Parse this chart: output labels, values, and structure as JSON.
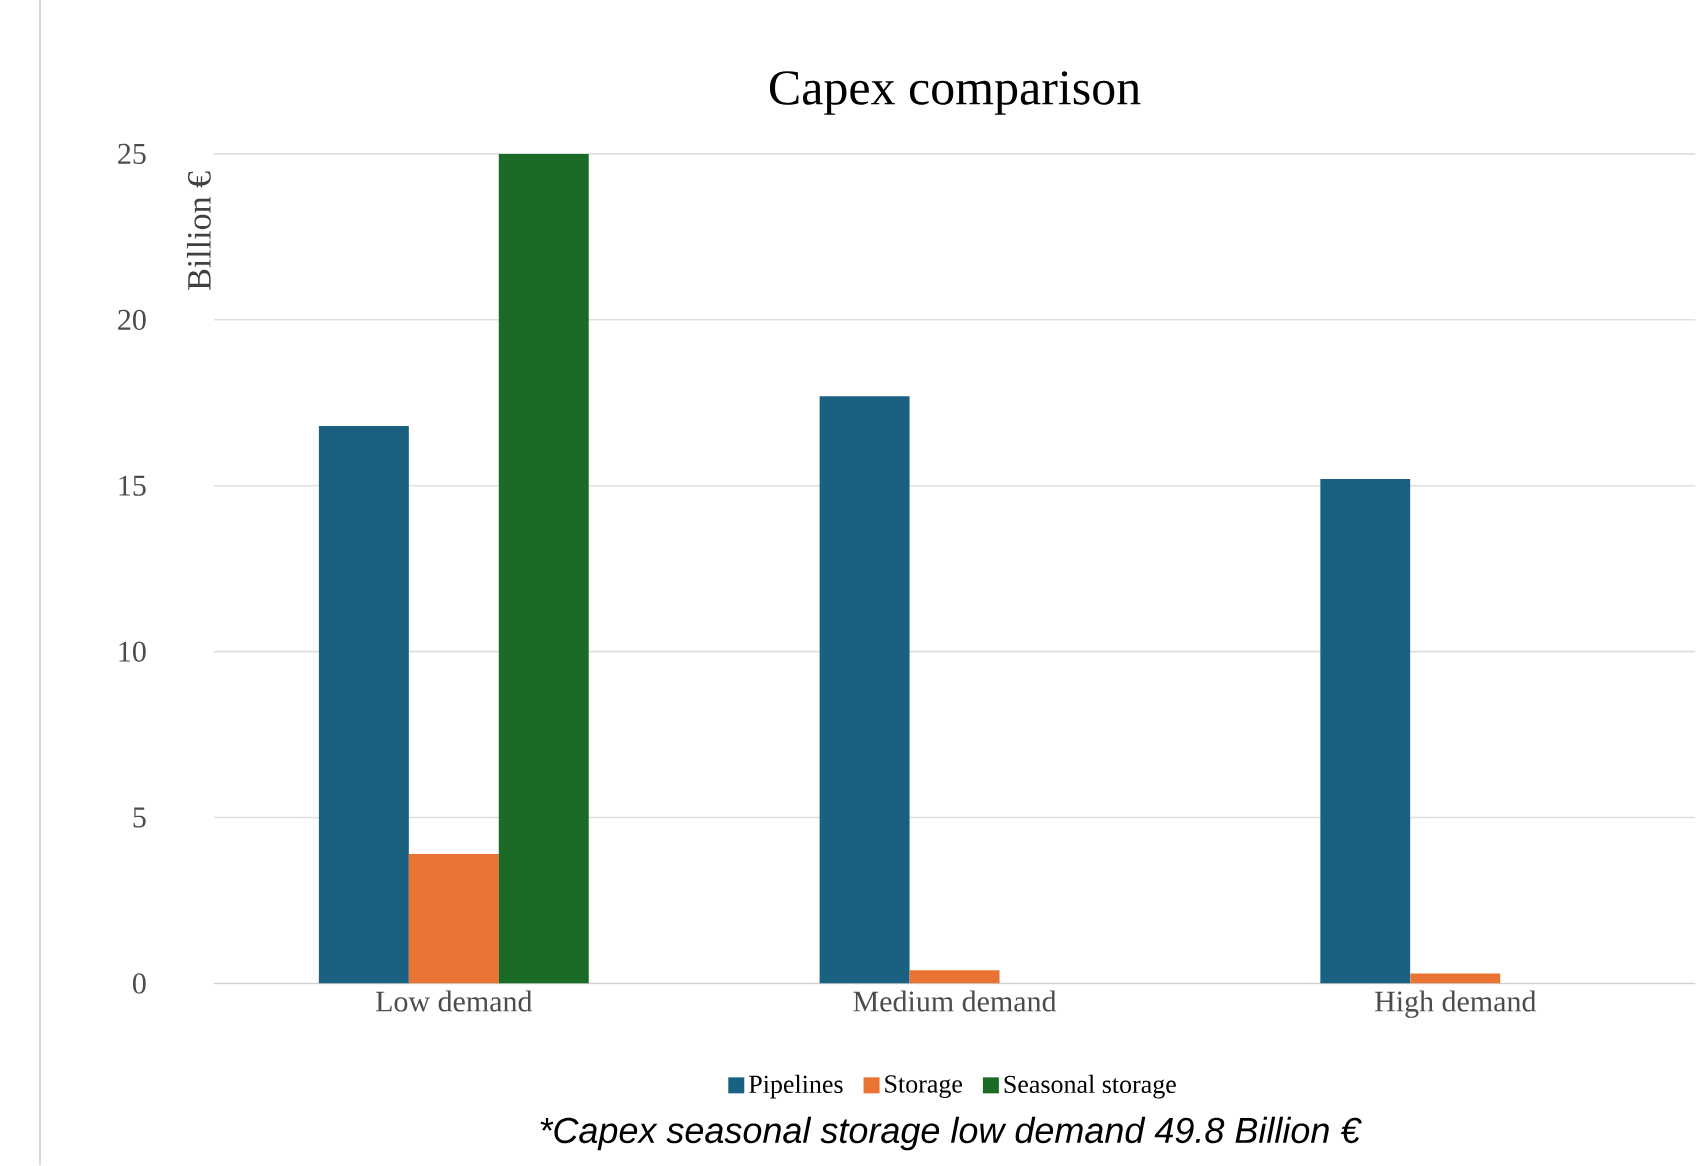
{
  "chart_data": {
    "type": "bar",
    "title": "Capex comparison",
    "ylabel": "Billion €",
    "categories": [
      "Low demand",
      "Medium demand",
      "High demand"
    ],
    "series": [
      {
        "name": "Pipelines",
        "color": "#1a6080",
        "values": [
          16.8,
          17.7,
          15.2
        ]
      },
      {
        "name": "Storage",
        "color": "#e97332",
        "values": [
          3.9,
          0.4,
          0.3
        ]
      },
      {
        "name": "Seasonal storage",
        "color": "#1b6b27",
        "values": [
          25,
          0,
          0
        ]
      }
    ],
    "ylim": [
      0,
      25
    ],
    "yticks": [
      0,
      5,
      10,
      15,
      20,
      25
    ],
    "grid": "y",
    "legend": "bottom",
    "annotations": [
      "*Capex seasonal storage low demand 49.8 Billion €"
    ]
  }
}
